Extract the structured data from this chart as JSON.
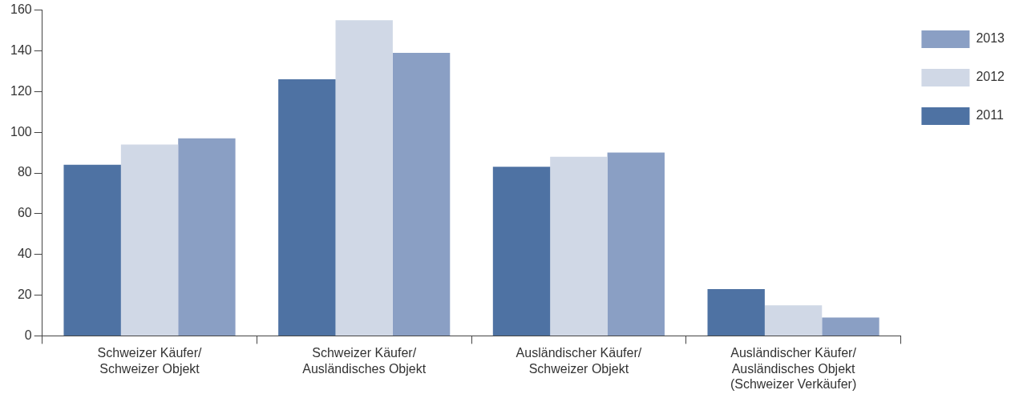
{
  "chart_data": {
    "type": "bar",
    "categories": [
      "Schweizer Käufer/\nSchweizer Objekt",
      "Schweizer Käufer/\nAusländisches Objekt",
      "Ausländischer Käufer/\nSchweizer Objekt",
      "Ausländischer Käufer/\nAusländisches Objekt\n(Schweizer Verkäufer)"
    ],
    "series": [
      {
        "name": "2011",
        "color": "#4e72a3",
        "values": [
          84,
          126,
          83,
          23
        ]
      },
      {
        "name": "2012",
        "color": "#d0d8e6",
        "values": [
          94,
          155,
          88,
          15
        ]
      },
      {
        "name": "2013",
        "color": "#8a9fc4",
        "values": [
          97,
          139,
          90,
          9
        ]
      }
    ],
    "ylim": [
      0,
      160
    ],
    "yticks": [
      0,
      20,
      40,
      60,
      80,
      100,
      120,
      140,
      160
    ],
    "grid": false,
    "legend": "right"
  }
}
